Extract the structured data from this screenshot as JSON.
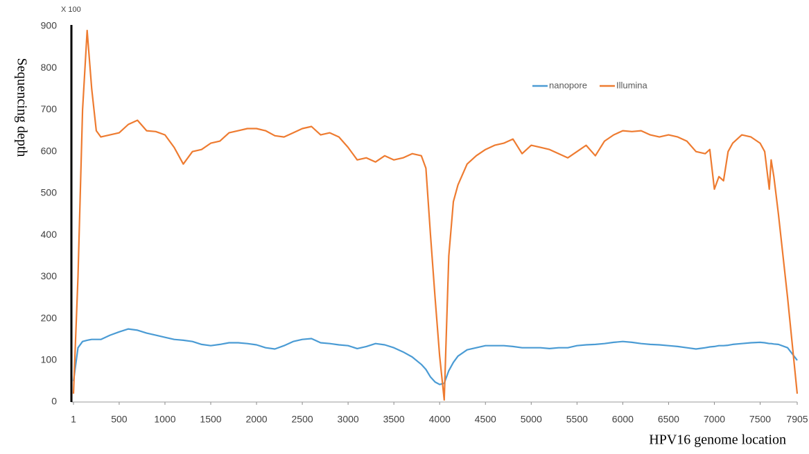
{
  "chart_data": {
    "type": "line",
    "y_label": "Sequencing depth",
    "x_label": "HPV16 genome location",
    "annotation": "X 100",
    "x": [
      1,
      50,
      100,
      150,
      200,
      250,
      300,
      400,
      500,
      600,
      700,
      800,
      900,
      1000,
      1100,
      1200,
      1300,
      1400,
      1500,
      1600,
      1700,
      1800,
      1900,
      2000,
      2100,
      2200,
      2300,
      2400,
      2500,
      2600,
      2700,
      2800,
      2900,
      3000,
      3100,
      3200,
      3300,
      3400,
      3500,
      3600,
      3700,
      3800,
      3850,
      3900,
      3950,
      4000,
      4050,
      4100,
      4150,
      4200,
      4300,
      4400,
      4500,
      4600,
      4700,
      4800,
      4900,
      5000,
      5100,
      5200,
      5300,
      5400,
      5500,
      5600,
      5700,
      5800,
      5900,
      6000,
      6100,
      6200,
      6300,
      6400,
      6500,
      6600,
      6700,
      6800,
      6900,
      6950,
      7000,
      7050,
      7100,
      7150,
      7200,
      7300,
      7400,
      7500,
      7550,
      7600,
      7620,
      7650,
      7700,
      7800,
      7905
    ],
    "series": [
      {
        "name": "nanopore",
        "color": "#4a9bd4",
        "values": [
          50,
          130,
          145,
          148,
          150,
          150,
          150,
          160,
          168,
          175,
          172,
          165,
          160,
          155,
          150,
          148,
          145,
          138,
          135,
          138,
          142,
          142,
          140,
          137,
          130,
          127,
          135,
          145,
          150,
          152,
          142,
          140,
          137,
          135,
          128,
          133,
          140,
          137,
          130,
          120,
          108,
          90,
          78,
          60,
          48,
          42,
          45,
          75,
          95,
          110,
          125,
          130,
          135,
          135,
          135,
          133,
          130,
          130,
          130,
          128,
          130,
          130,
          135,
          137,
          138,
          140,
          143,
          145,
          143,
          140,
          138,
          137,
          135,
          133,
          130,
          127,
          130,
          132,
          133,
          135,
          135,
          136,
          138,
          140,
          142,
          143,
          142,
          140,
          140,
          139,
          138,
          130,
          100
        ]
      },
      {
        "name": "Illumina",
        "color": "#ee7b30",
        "values": [
          20,
          300,
          700,
          890,
          750,
          650,
          635,
          640,
          645,
          665,
          675,
          650,
          648,
          640,
          610,
          570,
          600,
          605,
          620,
          625,
          645,
          650,
          655,
          655,
          650,
          638,
          635,
          645,
          655,
          660,
          640,
          645,
          635,
          610,
          580,
          585,
          575,
          590,
          580,
          585,
          595,
          590,
          560,
          400,
          250,
          110,
          5,
          350,
          480,
          520,
          570,
          590,
          605,
          615,
          620,
          630,
          595,
          615,
          610,
          605,
          595,
          585,
          600,
          615,
          590,
          625,
          640,
          650,
          648,
          650,
          640,
          635,
          640,
          635,
          625,
          600,
          595,
          605,
          510,
          540,
          530,
          600,
          620,
          640,
          635,
          620,
          600,
          510,
          580,
          540,
          450,
          250,
          20
        ]
      }
    ],
    "xlim": [
      1,
      7905
    ],
    "xticks": [
      1,
      500,
      1000,
      1500,
      2000,
      2500,
      3000,
      3500,
      4000,
      4500,
      5000,
      5500,
      6000,
      6500,
      7000,
      7500,
      7905
    ],
    "ylim": [
      0,
      900
    ],
    "yticks": [
      0,
      100,
      200,
      300,
      400,
      500,
      600,
      700,
      800,
      900
    ],
    "legend": "top-right"
  }
}
